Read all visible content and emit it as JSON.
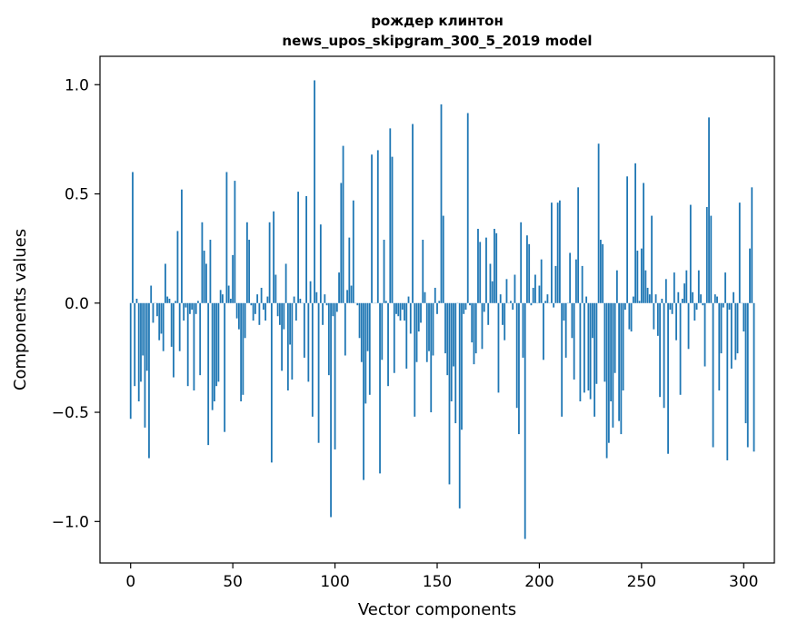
{
  "chart_data": {
    "type": "bar",
    "title": "рождер клинтон",
    "subtitle": "news_upos_skipgram_300_5_2019 model",
    "xlabel": "Vector components",
    "ylabel": "Components values",
    "xlim": [
      -15,
      315
    ],
    "ylim": [
      -1.19,
      1.13
    ],
    "x_ticks": [
      0,
      50,
      100,
      150,
      200,
      250,
      300
    ],
    "x_tick_labels": [
      "0",
      "50",
      "100",
      "150",
      "200",
      "250",
      "300"
    ],
    "y_ticks": [
      -1.0,
      -0.5,
      0.0,
      0.5,
      1.0
    ],
    "y_tick_labels": [
      "−1.0",
      "−0.5",
      "0.0",
      "0.5",
      "1.0"
    ],
    "bar_color": "#1f77b4",
    "grid": false,
    "legend": "none",
    "values": [
      -0.53,
      0.6,
      -0.38,
      0.02,
      -0.45,
      -0.36,
      -0.24,
      -0.57,
      -0.31,
      -0.71,
      0.08,
      -0.09,
      0.0,
      -0.06,
      -0.17,
      -0.14,
      -0.22,
      0.18,
      0.03,
      0.02,
      -0.2,
      -0.34,
      0.01,
      0.33,
      -0.22,
      0.52,
      -0.08,
      -0.02,
      -0.38,
      -0.05,
      -0.03,
      -0.4,
      -0.05,
      0.01,
      -0.33,
      0.37,
      0.24,
      0.18,
      -0.65,
      0.29,
      -0.49,
      -0.45,
      -0.38,
      -0.36,
      0.06,
      0.04,
      -0.59,
      0.6,
      0.08,
      0.02,
      0.22,
      0.56,
      -0.07,
      -0.12,
      -0.45,
      -0.42,
      -0.16,
      0.37,
      0.29,
      -0.01,
      -0.08,
      -0.05,
      0.04,
      -0.1,
      0.07,
      -0.03,
      -0.08,
      0.03,
      0.37,
      -0.73,
      0.42,
      0.13,
      -0.06,
      -0.1,
      -0.31,
      -0.12,
      0.18,
      -0.4,
      -0.19,
      -0.35,
      0.03,
      -0.08,
      0.51,
      0.02,
      0.0,
      -0.25,
      0.49,
      -0.36,
      0.1,
      -0.52,
      1.02,
      0.05,
      -0.64,
      0.36,
      -0.1,
      0.04,
      -0.01,
      -0.33,
      -0.98,
      -0.06,
      -0.67,
      -0.04,
      0.14,
      0.55,
      0.72,
      -0.24,
      0.06,
      0.3,
      0.08,
      0.47,
      0.0,
      -0.01,
      -0.16,
      -0.27,
      -0.81,
      -0.46,
      -0.22,
      -0.42,
      0.68,
      0.0,
      0.0,
      0.7,
      -0.78,
      -0.26,
      0.29,
      0.01,
      -0.38,
      0.8,
      0.67,
      -0.32,
      -0.05,
      -0.06,
      -0.08,
      -0.03,
      -0.08,
      -0.3,
      0.03,
      -0.14,
      0.82,
      -0.52,
      -0.27,
      -0.13,
      -0.09,
      0.29,
      0.05,
      -0.27,
      -0.22,
      -0.5,
      -0.24,
      0.07,
      -0.05,
      0.01,
      0.91,
      0.4,
      -0.23,
      -0.33,
      -0.83,
      -0.45,
      -0.29,
      -0.55,
      0.0,
      -0.94,
      -0.58,
      -0.05,
      -0.03,
      0.87,
      -0.01,
      -0.18,
      -0.28,
      -0.23,
      0.34,
      0.28,
      -0.21,
      -0.04,
      0.3,
      -0.1,
      0.18,
      0.1,
      0.34,
      0.32,
      -0.41,
      0.04,
      -0.1,
      -0.17,
      0.11,
      0.0,
      0.01,
      -0.03,
      0.13,
      -0.48,
      -0.6,
      0.37,
      -0.25,
      -1.08,
      0.31,
      0.27,
      -0.01,
      0.07,
      0.13,
      0.0,
      0.08,
      0.2,
      -0.26,
      0.01,
      0.04,
      0.0,
      0.46,
      -0.02,
      0.17,
      0.46,
      0.47,
      -0.52,
      -0.08,
      -0.25,
      0.0,
      0.23,
      -0.16,
      -0.35,
      0.2,
      0.53,
      -0.45,
      0.17,
      -0.41,
      0.03,
      -0.4,
      -0.44,
      -0.16,
      -0.52,
      -0.37,
      0.73,
      0.29,
      0.27,
      -0.36,
      -0.71,
      -0.64,
      -0.45,
      -0.57,
      -0.32,
      0.15,
      -0.54,
      -0.6,
      -0.4,
      -0.03,
      0.58,
      -0.12,
      -0.13,
      0.03,
      0.64,
      0.24,
      0.01,
      0.25,
      0.55,
      0.15,
      0.07,
      0.04,
      0.4,
      -0.12,
      0.04,
      -0.15,
      -0.43,
      0.02,
      -0.48,
      0.11,
      -0.69,
      -0.03,
      -0.05,
      0.14,
      -0.17,
      0.05,
      -0.42,
      0.02,
      0.09,
      0.15,
      -0.21,
      0.45,
      0.05,
      -0.08,
      -0.03,
      0.15,
      0.04,
      -0.01,
      -0.29,
      0.44,
      0.85,
      0.4,
      -0.66,
      0.04,
      0.03,
      -0.4,
      -0.23,
      -0.02,
      0.14,
      -0.72,
      -0.03,
      -0.3,
      0.05,
      -0.26,
      -0.23,
      0.46,
      0.0,
      -0.13,
      -0.55,
      -0.66,
      0.25,
      0.53,
      -0.68
    ]
  }
}
